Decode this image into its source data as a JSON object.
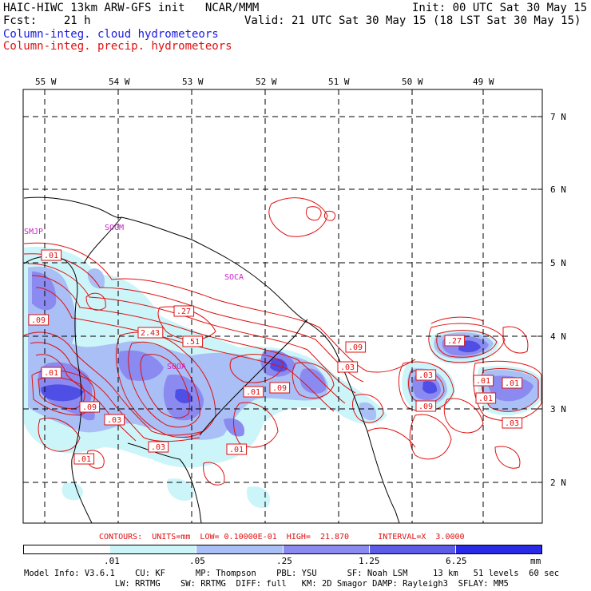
{
  "header": {
    "model_line": "HAIC-HIWC 13km ARW-GFS init   NCAR/MMM",
    "fcst_line": "Fcst:    21 h",
    "init_line": "Init: 00 UTC Sat 30 May 15",
    "valid_line": "Valid: 21 UTC Sat 30 May 15 (18 LST Sat 30 May 15)",
    "legend_cloud": "Column-integ. cloud hydrometeors",
    "legend_precip": "Column-integ. precip. hydrometeors"
  },
  "colors": {
    "cloud": "#1a1ae0",
    "precip": "#e01010",
    "label_magenta": "#cc22cc",
    "shade_levels": [
      "#ffffff",
      "#ccf5fa",
      "#a9bff5",
      "#8a8af0",
      "#5c5ce8",
      "#2a2ae6"
    ]
  },
  "map": {
    "lon_labels": [
      "55 W",
      "54 W",
      "53 W",
      "52 W",
      "51 W",
      "50 W",
      "49 W"
    ],
    "lat_labels": [
      "7 N",
      "6 N",
      "5 N",
      "4 N",
      "3 N",
      "2 N"
    ],
    "stations": [
      "SMJP",
      "SOGM",
      "SOCA",
      "SOOA"
    ],
    "contour_labels": [
      ".01",
      ".09",
      "2.43",
      ".27",
      ".51",
      ".09",
      ".01",
      ".03",
      ".01",
      ".03",
      ".01",
      ".01",
      ".09",
      ".03",
      ".09",
      ".03",
      ".09",
      ".27",
      ".01",
      ".01",
      ".01",
      ".03"
    ]
  },
  "contour_info": {
    "text": "CONTOURS:  UNITS=mm  LOW= 0.10000E-01  HIGH=  21.870      INTERVAL=X  3.0000"
  },
  "colorbar": {
    "ticks": [
      ".01",
      ".05",
      ".25",
      "1.25",
      "6.25"
    ],
    "unit": "mm"
  },
  "footer": {
    "line1": "Model Info: V3.6.1    CU: KF      MP: Thompson    PBL: YSU      SF: Noah LSM     13 km   51 levels  60 sec",
    "line2": "                  LW: RRTMG    SW: RRTMG  DIFF: full   KM: 2D Smagor DAMP: Rayleigh3  SFLAY: MM5"
  }
}
